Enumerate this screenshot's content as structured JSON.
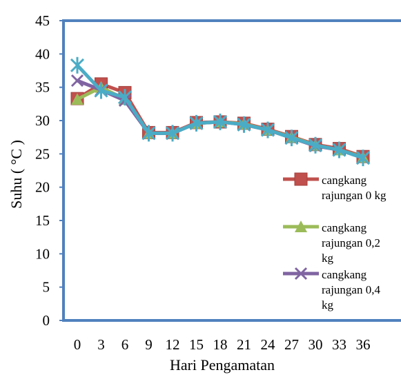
{
  "chart_data": {
    "type": "line",
    "title": "",
    "xlabel": "Hari Pengamatan",
    "ylabel": "Suhu ( °C )",
    "ylim": [
      0,
      45
    ],
    "yticks": [
      0,
      5,
      10,
      15,
      20,
      25,
      30,
      35,
      40,
      45
    ],
    "categories": [
      "0",
      "3",
      "6",
      "9",
      "12",
      "15",
      "18",
      "21",
      "24",
      "27",
      "30",
      "33",
      "36"
    ],
    "legend_position": "right",
    "series": [
      {
        "name": "cangkang rajungan 0 kg",
        "legend_lines": [
          "cangkang",
          "rajungan 0 kg"
        ],
        "color": "#c0504d",
        "marker": "square",
        "values": [
          33.3,
          35.5,
          34.2,
          28.2,
          28.2,
          29.7,
          29.8,
          29.6,
          28.7,
          27.6,
          26.4,
          25.8,
          24.6
        ]
      },
      {
        "name": "cangkang rajungan 0,2 kg",
        "legend_lines": [
          "cangkang",
          "rajungan 0,2",
          "kg"
        ],
        "color": "#9bbb59",
        "marker": "triangle",
        "values": [
          33.2,
          35.0,
          33.2,
          28.1,
          28.1,
          29.6,
          29.8,
          29.5,
          28.6,
          27.5,
          26.3,
          25.6,
          24.5
        ]
      },
      {
        "name": "cangkang rajungan 0,4 kg",
        "legend_lines": [
          "cangkang",
          "rajungan 0,4",
          "kg"
        ],
        "color": "#8064a2",
        "marker": "x",
        "values": [
          36.0,
          34.6,
          33.0,
          28.1,
          28.1,
          29.6,
          29.8,
          29.4,
          28.6,
          27.4,
          26.2,
          25.6,
          24.4
        ]
      },
      {
        "name": "",
        "color": "#4bacc6",
        "marker": "star",
        "values": [
          38.3,
          34.5,
          33.5,
          28.1,
          28.1,
          29.6,
          29.8,
          29.4,
          28.6,
          27.4,
          26.3,
          25.6,
          24.4
        ]
      }
    ]
  }
}
